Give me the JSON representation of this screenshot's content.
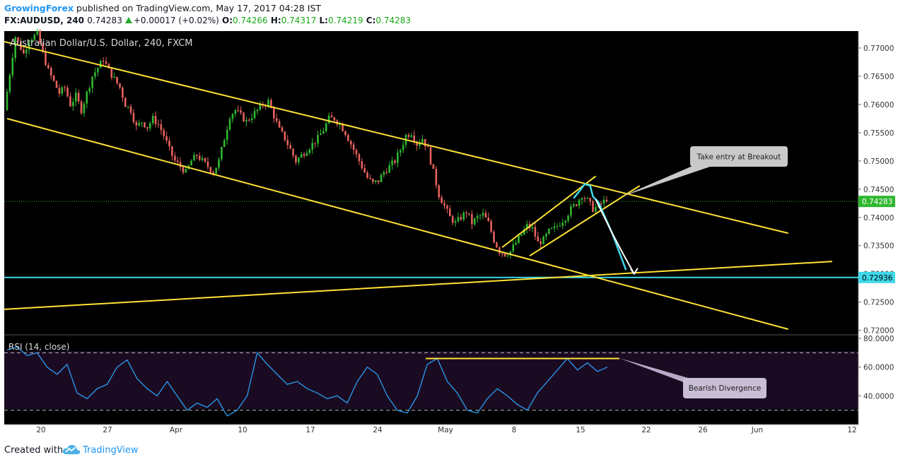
{
  "header": {
    "author": "GrowingForex",
    "published": "published on TradingView.com, May 17, 2017 04:28 IST",
    "symbol": "FX:AUDUSD, 240",
    "last": "0.74283",
    "change": "+0.00017 (+0.02%)",
    "o_label": "O:",
    "o": "0.74266",
    "h_label": "H:",
    "h": "0.74317",
    "l_label": "L:",
    "l": "0.74219",
    "c_label": "C:",
    "c": "0.74283"
  },
  "footer": {
    "created": "Created with",
    "brand": "TradingView"
  },
  "colors": {
    "background": "#000000",
    "up": "#2fb82f",
    "down": "#e8625d",
    "trendline": "#ffe234",
    "horizontal": "#3fd8ea",
    "rsi": "#2a9df4",
    "rsi_band": "#1b0b22",
    "annotation_box": "#c9c9c9",
    "price_label": "#3fd8ea"
  },
  "chart_data": [
    {
      "type": "candlestick",
      "title": "Australian Dollar/U.S. Dollar, 240, FXCM",
      "y_ticks": [
        "0.77000",
        "0.76500",
        "0.76000",
        "0.75500",
        "0.75000",
        "0.74500",
        "0.74000",
        "0.73500",
        "0.73000",
        "0.72500",
        "0.72000"
      ],
      "ylim": [
        0.7192,
        0.773
      ],
      "x_ticks": [
        "20",
        "27",
        "Apr",
        "10",
        "17",
        "24",
        "May",
        "8",
        "15",
        "22",
        "26",
        "Jun",
        "12"
      ],
      "last_price_label": "0.74283",
      "horizontal_line_label": "0.72936",
      "horizontal_line": 0.72936,
      "path": [
        [
          0,
          0.759
        ],
        [
          4,
          0.772
        ],
        [
          7,
          0.769
        ],
        [
          9,
          0.7715
        ],
        [
          12,
          0.7725
        ],
        [
          14,
          0.769
        ],
        [
          16,
          0.766
        ],
        [
          18,
          0.764
        ],
        [
          20,
          0.762
        ],
        [
          22,
          0.763
        ],
        [
          24,
          0.76
        ],
        [
          26,
          0.7615
        ],
        [
          28,
          0.759
        ],
        [
          30,
          0.762
        ],
        [
          32,
          0.765
        ],
        [
          34,
          0.7665
        ],
        [
          36,
          0.768
        ],
        [
          38,
          0.766
        ],
        [
          40,
          0.7645
        ],
        [
          42,
          0.763
        ],
        [
          44,
          0.76
        ],
        [
          46,
          0.759
        ],
        [
          48,
          0.756
        ],
        [
          50,
          0.757
        ],
        [
          52,
          0.756
        ],
        [
          54,
          0.7575
        ],
        [
          56,
          0.7565
        ],
        [
          58,
          0.7545
        ],
        [
          60,
          0.752
        ],
        [
          62,
          0.75
        ],
        [
          64,
          0.749
        ],
        [
          66,
          0.748
        ],
        [
          68,
          0.75
        ],
        [
          70,
          0.751
        ],
        [
          72,
          0.75
        ],
        [
          74,
          0.749
        ],
        [
          76,
          0.748
        ],
        [
          78,
          0.75
        ],
        [
          80,
          0.754
        ],
        [
          82,
          0.758
        ],
        [
          84,
          0.759
        ],
        [
          86,
          0.758
        ],
        [
          88,
          0.757
        ],
        [
          90,
          0.758
        ],
        [
          92,
          0.759
        ],
        [
          94,
          0.76
        ],
        [
          96,
          0.7605
        ],
        [
          98,
          0.758
        ],
        [
          100,
          0.7555
        ],
        [
          102,
          0.754
        ],
        [
          104,
          0.752
        ],
        [
          106,
          0.75
        ],
        [
          108,
          0.751
        ],
        [
          110,
          0.752
        ],
        [
          112,
          0.753
        ],
        [
          114,
          0.754
        ],
        [
          116,
          0.7555
        ],
        [
          118,
          0.7575
        ],
        [
          120,
          0.7575
        ],
        [
          122,
          0.7565
        ],
        [
          124,
          0.755
        ],
        [
          126,
          0.753
        ],
        [
          128,
          0.751
        ],
        [
          130,
          0.749
        ],
        [
          132,
          0.747
        ],
        [
          134,
          0.746
        ],
        [
          136,
          0.7465
        ],
        [
          138,
          0.748
        ],
        [
          140,
          0.749
        ],
        [
          142,
          0.75
        ],
        [
          144,
          0.752
        ],
        [
          146,
          0.7545
        ],
        [
          148,
          0.755
        ],
        [
          150,
          0.753
        ],
        [
          152,
          0.754
        ],
        [
          154,
          0.752
        ],
        [
          156,
          0.748
        ],
        [
          158,
          0.744
        ],
        [
          160,
          0.742
        ],
        [
          162,
          0.74
        ],
        [
          164,
          0.739
        ],
        [
          166,
          0.74
        ],
        [
          168,
          0.741
        ],
        [
          170,
          0.739
        ],
        [
          172,
          0.74
        ],
        [
          174,
          0.7405
        ],
        [
          176,
          0.739
        ],
        [
          178,
          0.736
        ],
        [
          180,
          0.734
        ],
        [
          182,
          0.7335
        ],
        [
          184,
          0.734
        ],
        [
          186,
          0.7355
        ],
        [
          188,
          0.737
        ],
        [
          190,
          0.7385
        ],
        [
          192,
          0.738
        ],
        [
          194,
          0.7355
        ],
        [
          196,
          0.736
        ],
        [
          198,
          0.7375
        ],
        [
          200,
          0.738
        ],
        [
          202,
          0.739
        ],
        [
          204,
          0.74
        ],
        [
          206,
          0.7415
        ],
        [
          208,
          0.7425
        ],
        [
          210,
          0.744
        ],
        [
          212,
          0.743
        ],
        [
          214,
          0.7415
        ],
        [
          216,
          0.742
        ],
        [
          218,
          0.7428
        ]
      ],
      "trendlines": [
        {
          "name": "channel-upper",
          "start": {
            "bar": -10,
            "price": 0.7722
          },
          "end": {
            "bar": 284,
            "price": 0.7372
          }
        },
        {
          "name": "channel-lower",
          "start": {
            "bar": 0,
            "price": 0.7575
          },
          "end": {
            "bar": 284,
            "price": 0.7202
          }
        },
        {
          "name": "rising-support",
          "start": {
            "bar": -16,
            "price": 0.7233
          },
          "end": {
            "bar": 300,
            "price": 0.7322
          }
        },
        {
          "name": "flag-upper",
          "start": {
            "bar": 180,
            "price": 0.7347
          },
          "end": {
            "bar": 214,
            "price": 0.7473
          }
        },
        {
          "name": "flag-lower",
          "start": {
            "bar": 190,
            "price": 0.7332
          },
          "end": {
            "bar": 230,
            "price": 0.7456
          }
        }
      ],
      "projection": {
        "cyan": [
          [
            206,
            0.7434
          ],
          [
            208,
            0.7446
          ],
          [
            210,
            0.7459
          ],
          [
            212,
            0.7456
          ],
          [
            213,
            0.7437
          ],
          [
            215,
            0.7427
          ],
          [
            220,
            0.7372
          ],
          [
            225,
            0.7307
          ]
        ],
        "white": [
          [
            214,
            0.7432
          ],
          [
            220,
            0.7372
          ],
          [
            224,
            0.7335
          ],
          [
            228,
            0.73
          ]
        ]
      },
      "annotations": [
        {
          "text": "Take entry at Breakout"
        },
        {
          "text": "Bearish Divergence"
        }
      ]
    },
    {
      "type": "line",
      "title": "RSI (14, close)",
      "y_ticks": [
        "80.0000",
        "60.0000",
        "40.0000"
      ],
      "ylim": [
        20,
        82
      ],
      "bands": [
        70,
        30
      ],
      "levels": [
        [
          0,
          72
        ],
        [
          5,
          74
        ],
        [
          10,
          68
        ],
        [
          15,
          70
        ],
        [
          20,
          60
        ],
        [
          25,
          55
        ],
        [
          30,
          62
        ],
        [
          35,
          42
        ],
        [
          40,
          38
        ],
        [
          45,
          45
        ],
        [
          50,
          48
        ],
        [
          55,
          60
        ],
        [
          60,
          65
        ],
        [
          65,
          52
        ],
        [
          70,
          45
        ],
        [
          75,
          40
        ],
        [
          80,
          50
        ],
        [
          85,
          40
        ],
        [
          90,
          30
        ],
        [
          95,
          35
        ],
        [
          100,
          32
        ],
        [
          105,
          38
        ],
        [
          110,
          26
        ],
        [
          115,
          30
        ],
        [
          120,
          40
        ],
        [
          125,
          70
        ],
        [
          130,
          62
        ],
        [
          135,
          55
        ],
        [
          140,
          48
        ],
        [
          145,
          50
        ],
        [
          150,
          45
        ],
        [
          155,
          42
        ],
        [
          160,
          38
        ],
        [
          165,
          40
        ],
        [
          170,
          35
        ],
        [
          175,
          50
        ],
        [
          180,
          60
        ],
        [
          185,
          55
        ],
        [
          190,
          40
        ],
        [
          195,
          30
        ],
        [
          200,
          28
        ],
        [
          205,
          40
        ],
        [
          210,
          62
        ],
        [
          215,
          66
        ],
        [
          220,
          50
        ],
        [
          225,
          42
        ],
        [
          230,
          30
        ],
        [
          235,
          28
        ],
        [
          240,
          38
        ],
        [
          245,
          45
        ],
        [
          250,
          40
        ],
        [
          255,
          34
        ],
        [
          260,
          30
        ],
        [
          265,
          42
        ],
        [
          270,
          50
        ],
        [
          275,
          58
        ],
        [
          280,
          66
        ],
        [
          285,
          58
        ],
        [
          290,
          63
        ],
        [
          295,
          57
        ],
        [
          300,
          60
        ]
      ],
      "divergence_line": 66
    }
  ]
}
